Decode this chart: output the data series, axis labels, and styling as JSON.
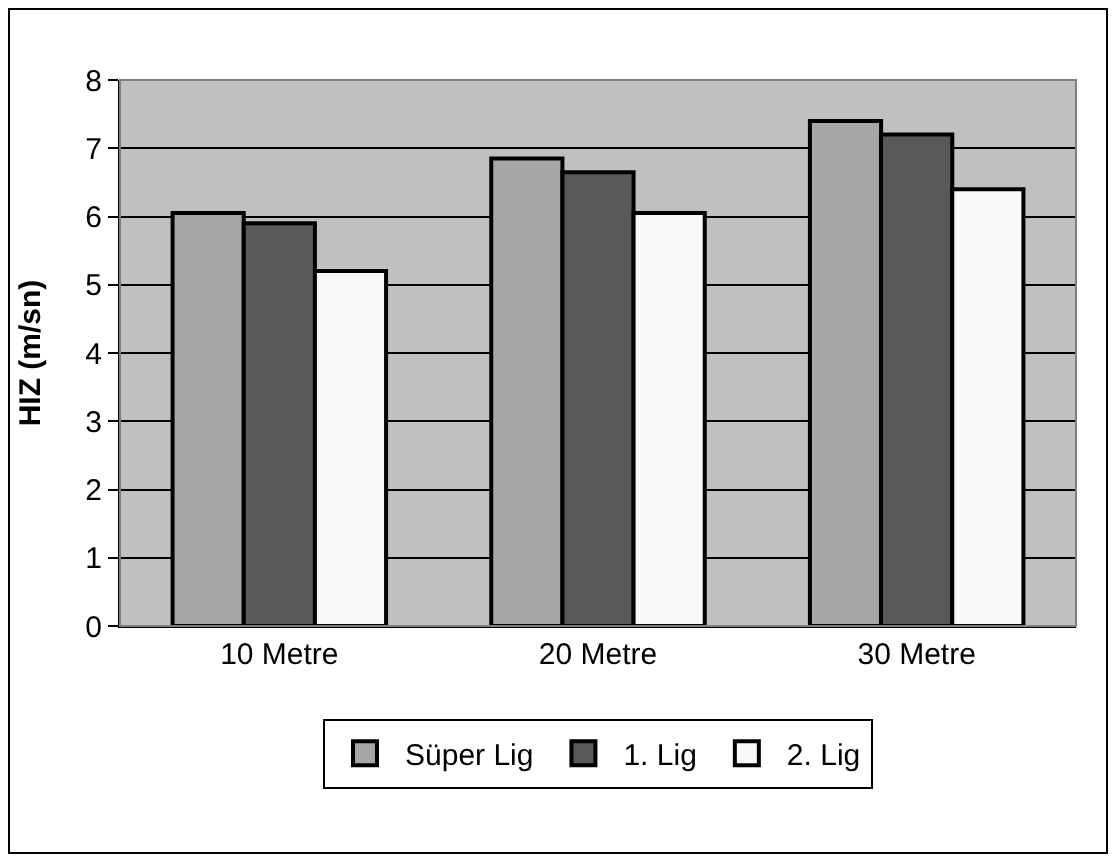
{
  "chart_data": {
    "type": "bar",
    "ylabel": "HIZ (m/sn)",
    "categories": [
      "10 Metre",
      "20 Metre",
      "30 Metre"
    ],
    "series": [
      {
        "name": "Süper Lig",
        "color": "#a6a6a6",
        "values": [
          6.05,
          6.85,
          7.4
        ]
      },
      {
        "name": "1. Lig",
        "color": "#595959",
        "values": [
          5.9,
          6.65,
          7.2
        ]
      },
      {
        "name": "2. Lig",
        "color": "#f8f8f8",
        "values": [
          5.2,
          6.05,
          6.4
        ]
      }
    ],
    "ylim": [
      0,
      8
    ],
    "yticks": [
      0,
      1,
      2,
      3,
      4,
      5,
      6,
      7,
      8
    ],
    "grid": "y",
    "legend": "bottom"
  }
}
